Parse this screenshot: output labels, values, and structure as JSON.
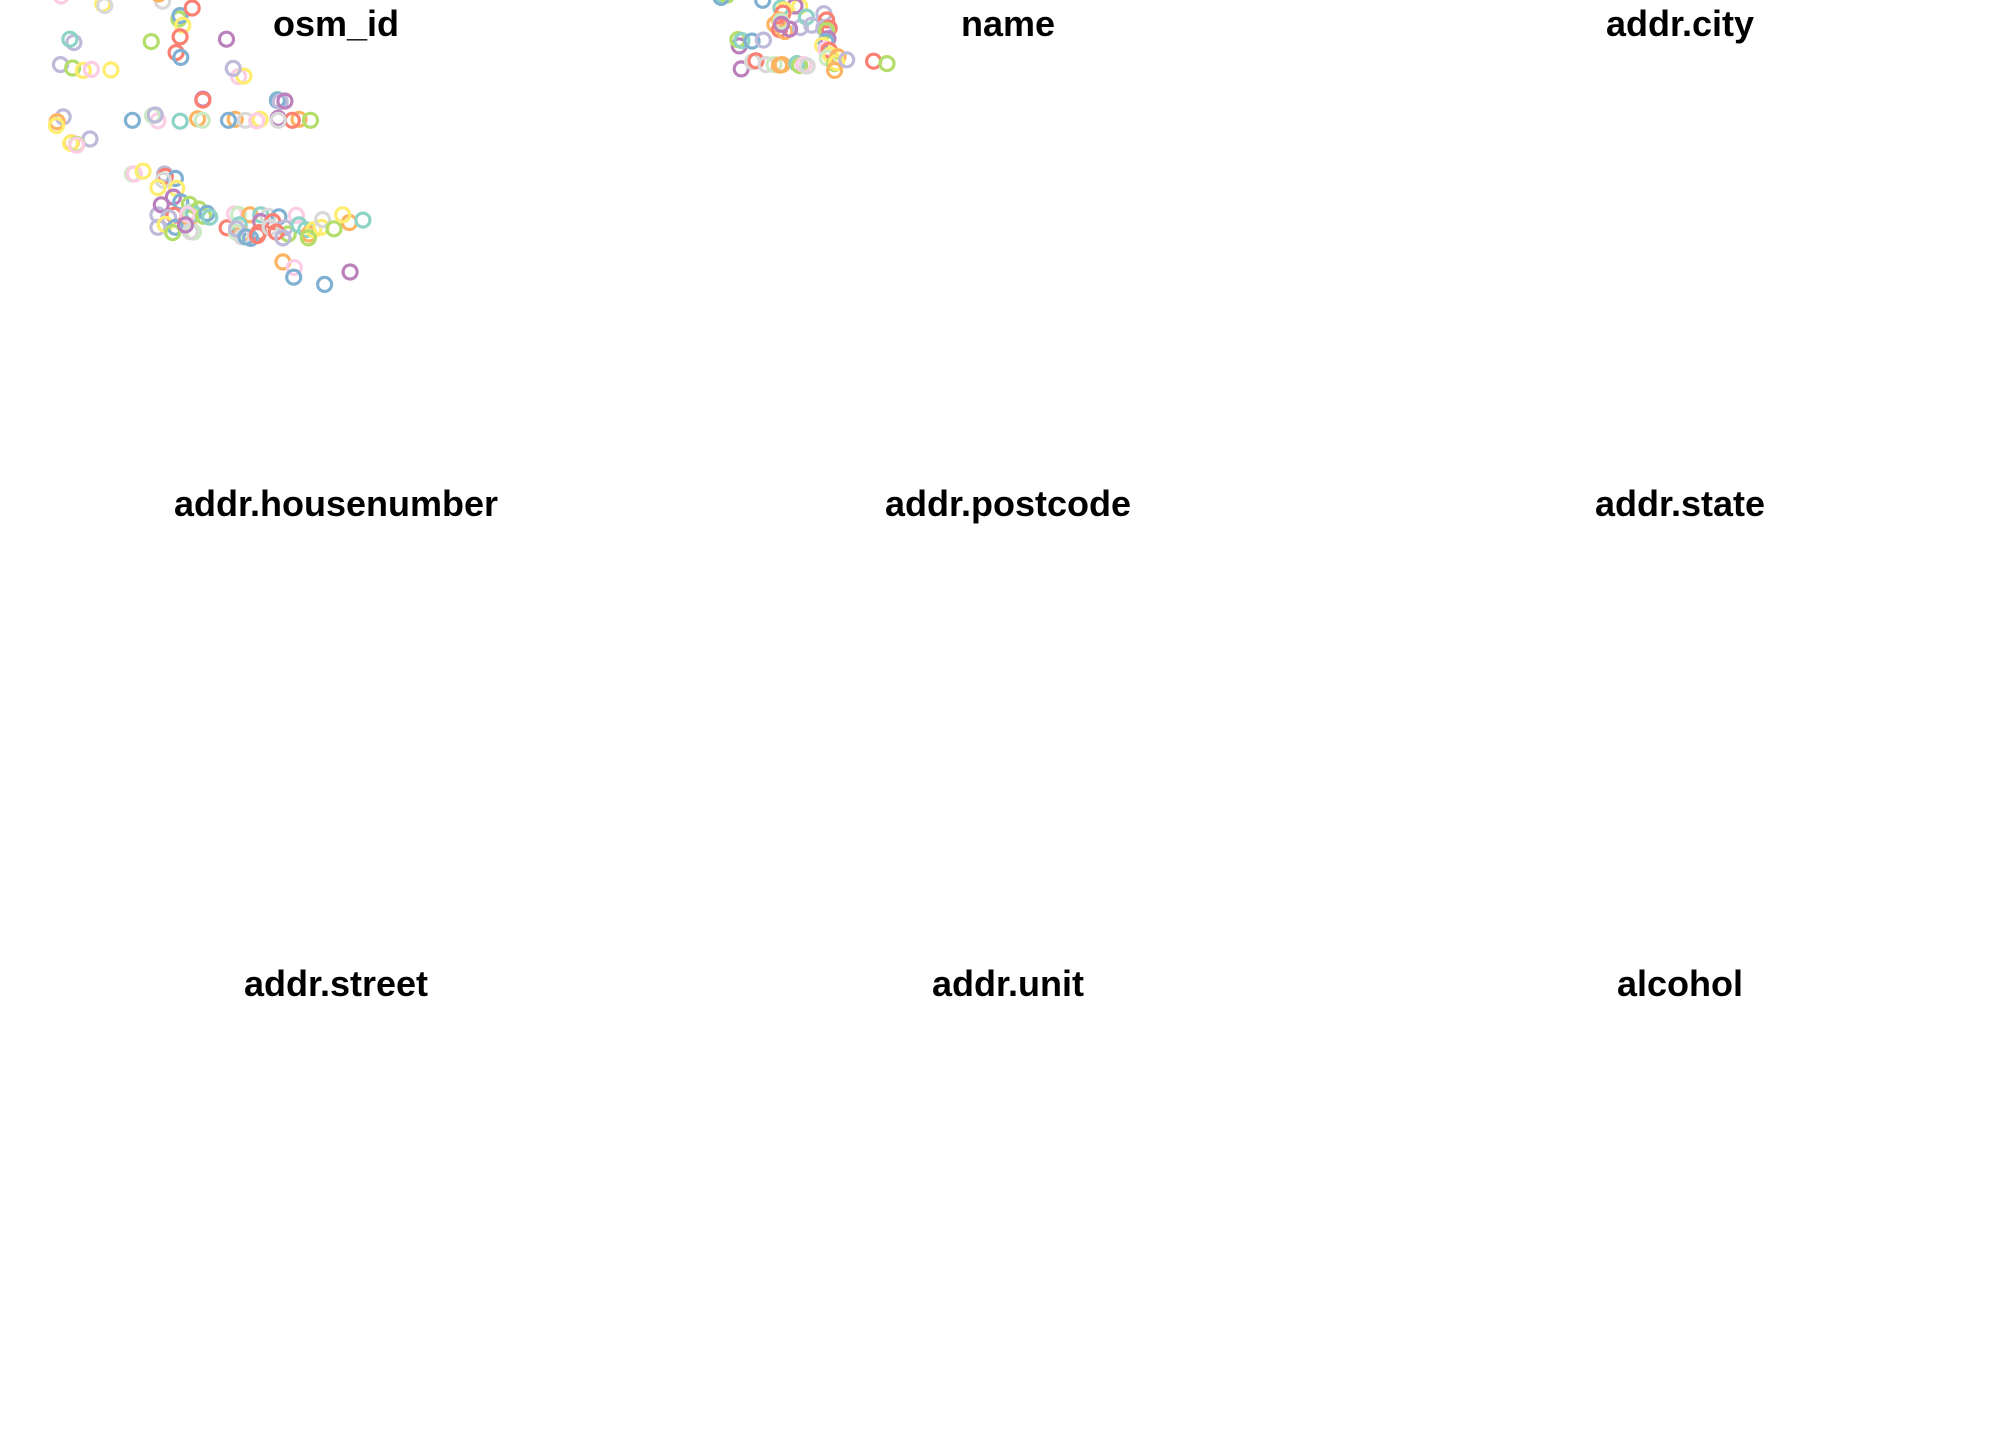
{
  "chart_data": [
    {
      "type": "scatter",
      "title": "osm_id",
      "points": [
        {
          "x": 0.09,
          "y": 0.52,
          "c": "#bebada"
        },
        {
          "x": 0.108,
          "y": 0.527,
          "c": "#b3de69"
        },
        {
          "x": 0.124,
          "y": 0.532,
          "c": "#ffed6f"
        },
        {
          "x": 0.11,
          "y": 0.474,
          "c": "#bebada"
        },
        {
          "x": 0.104,
          "y": 0.467,
          "c": "#8dd3c7"
        },
        {
          "x": 0.136,
          "y": 0.53,
          "c": "#fccde5"
        },
        {
          "x": 0.165,
          "y": 0.531,
          "c": "#ffed6f"
        },
        {
          "x": 0.091,
          "y": 0.348,
          "c": "#80b1d3"
        },
        {
          "x": 0.084,
          "y": 0.357,
          "c": "#bebada"
        },
        {
          "x": 0.091,
          "y": 0.377,
          "c": "#fccde5"
        },
        {
          "x": 0.153,
          "y": 0.394,
          "c": "#ffed6f"
        },
        {
          "x": 0.156,
          "y": 0.397,
          "c": "#d9d9d9"
        },
        {
          "x": 0.266,
          "y": 0.425,
          "c": "#b3de69"
        },
        {
          "x": 0.268,
          "y": 0.418,
          "c": "#80b1d3"
        },
        {
          "x": 0.242,
          "y": 0.388,
          "c": "#d9d9d9"
        },
        {
          "x": 0.236,
          "y": 0.373,
          "c": "#fdb462"
        },
        {
          "x": 0.286,
          "y": 0.402,
          "c": "#fb8072"
        },
        {
          "x": 0.272,
          "y": 0.438,
          "c": "#ffed6f"
        },
        {
          "x": 0.225,
          "y": 0.472,
          "c": "#b3de69"
        },
        {
          "x": 0.268,
          "y": 0.462,
          "c": "#fb8072"
        },
        {
          "x": 0.262,
          "y": 0.495,
          "c": "#fb8072"
        },
        {
          "x": 0.269,
          "y": 0.505,
          "c": "#80b1d3"
        },
        {
          "x": 0.337,
          "y": 0.467,
          "c": "#bc80bd"
        },
        {
          "x": 0.355,
          "y": 0.545,
          "c": "#fccde5"
        },
        {
          "x": 0.363,
          "y": 0.544,
          "c": "#ffed6f"
        },
        {
          "x": 0.347,
          "y": 0.528,
          "c": "#bebada"
        },
        {
          "x": 0.302,
          "y": 0.592,
          "c": "#bc80bd"
        },
        {
          "x": 0.302,
          "y": 0.594,
          "c": "#fb8072"
        },
        {
          "x": 0.413,
          "y": 0.593,
          "c": "#8dd3c7"
        },
        {
          "x": 0.413,
          "y": 0.595,
          "c": "#80b1d3"
        },
        {
          "x": 0.417,
          "y": 0.597,
          "c": "#bebada"
        },
        {
          "x": 0.424,
          "y": 0.596,
          "c": "#bc80bd"
        },
        {
          "x": 0.094,
          "y": 0.629,
          "c": "#bebada"
        },
        {
          "x": 0.085,
          "y": 0.639,
          "c": "#fdb462"
        },
        {
          "x": 0.084,
          "y": 0.647,
          "c": "#ffed6f"
        },
        {
          "x": 0.197,
          "y": 0.636,
          "c": "#80b1d3"
        },
        {
          "x": 0.235,
          "y": 0.637,
          "c": "#fccde5"
        },
        {
          "x": 0.268,
          "y": 0.638,
          "c": "#8dd3c7"
        },
        {
          "x": 0.227,
          "y": 0.626,
          "c": "#ccebc5"
        },
        {
          "x": 0.231,
          "y": 0.625,
          "c": "#bebada"
        },
        {
          "x": 0.294,
          "y": 0.633,
          "c": "#fdb462"
        },
        {
          "x": 0.301,
          "y": 0.636,
          "c": "#ccebc5"
        },
        {
          "x": 0.35,
          "y": 0.634,
          "c": "#fdb462"
        },
        {
          "x": 0.34,
          "y": 0.636,
          "c": "#80b1d3"
        },
        {
          "x": 0.365,
          "y": 0.636,
          "c": "#d9d9d9"
        },
        {
          "x": 0.387,
          "y": 0.634,
          "c": "#ffed6f"
        },
        {
          "x": 0.382,
          "y": 0.637,
          "c": "#fccde5"
        },
        {
          "x": 0.414,
          "y": 0.632,
          "c": "#bc80bd"
        },
        {
          "x": 0.445,
          "y": 0.634,
          "c": "#fdb462"
        },
        {
          "x": 0.462,
          "y": 0.636,
          "c": "#b3de69"
        },
        {
          "x": 0.435,
          "y": 0.636,
          "c": "#fb8072"
        },
        {
          "x": 0.414,
          "y": 0.636,
          "c": "#d9d9d9"
        },
        {
          "x": 0.134,
          "y": 0.675,
          "c": "#bebada"
        },
        {
          "x": 0.106,
          "y": 0.683,
          "c": "#fdb462"
        },
        {
          "x": 0.105,
          "y": 0.684,
          "c": "#ffed6f"
        },
        {
          "x": 0.114,
          "y": 0.686,
          "c": "#b3de69"
        },
        {
          "x": 0.114,
          "y": 0.688,
          "c": "#fccde5"
        },
        {
          "x": 0.197,
          "y": 0.748,
          "c": "#ccebc5"
        },
        {
          "x": 0.2,
          "y": 0.748,
          "c": "#fccde5"
        },
        {
          "x": 0.213,
          "y": 0.742,
          "c": "#ffed6f"
        },
        {
          "x": 0.245,
          "y": 0.748,
          "c": "#bebada"
        },
        {
          "x": 0.246,
          "y": 0.753,
          "c": "#fb8072"
        },
        {
          "x": 0.261,
          "y": 0.757,
          "c": "#80b1d3"
        },
        {
          "x": 0.243,
          "y": 0.761,
          "c": "#d9d9d9"
        },
        {
          "x": 0.235,
          "y": 0.776,
          "c": "#ffed6f"
        },
        {
          "x": 0.263,
          "y": 0.778,
          "c": "#ffed6f"
        },
        {
          "x": 0.258,
          "y": 0.796,
          "c": "#bc80bd"
        },
        {
          "x": 0.269,
          "y": 0.806,
          "c": "#80b1d3"
        },
        {
          "x": 0.235,
          "y": 0.833,
          "c": "#bebada"
        },
        {
          "x": 0.24,
          "y": 0.812,
          "c": "#bc80bd"
        },
        {
          "x": 0.282,
          "y": 0.84,
          "c": "#fdb462"
        },
        {
          "x": 0.282,
          "y": 0.811,
          "c": "#b3de69"
        },
        {
          "x": 0.259,
          "y": 0.834,
          "c": "#fb8072"
        },
        {
          "x": 0.284,
          "y": 0.827,
          "c": "#ccebc5"
        },
        {
          "x": 0.288,
          "y": 0.83,
          "c": "#8dd3c7"
        },
        {
          "x": 0.296,
          "y": 0.821,
          "c": "#b3de69"
        },
        {
          "x": 0.279,
          "y": 0.832,
          "c": "#fccde5"
        },
        {
          "x": 0.251,
          "y": 0.839,
          "c": "#bebada"
        },
        {
          "x": 0.235,
          "y": 0.859,
          "c": "#bebada"
        },
        {
          "x": 0.246,
          "y": 0.853,
          "c": "#ffed6f"
        },
        {
          "x": 0.261,
          "y": 0.859,
          "c": "#80b1d3"
        },
        {
          "x": 0.288,
          "y": 0.869,
          "c": "#ccebc5"
        },
        {
          "x": 0.257,
          "y": 0.87,
          "c": "#b3de69"
        },
        {
          "x": 0.283,
          "y": 0.868,
          "c": "#d9d9d9"
        },
        {
          "x": 0.276,
          "y": 0.854,
          "c": "#bc80bd"
        },
        {
          "x": 0.303,
          "y": 0.836,
          "c": "#b3de69"
        },
        {
          "x": 0.308,
          "y": 0.83,
          "c": "#80b1d3"
        },
        {
          "x": 0.312,
          "y": 0.838,
          "c": "#8dd3c7"
        },
        {
          "x": 0.338,
          "y": 0.86,
          "c": "#fb8072"
        },
        {
          "x": 0.349,
          "y": 0.831,
          "c": "#fccde5"
        },
        {
          "x": 0.355,
          "y": 0.832,
          "c": "#ccebc5"
        },
        {
          "x": 0.372,
          "y": 0.833,
          "c": "#fdb462"
        },
        {
          "x": 0.356,
          "y": 0.854,
          "c": "#8dd3c7"
        },
        {
          "x": 0.388,
          "y": 0.833,
          "c": "#8dd3c7"
        },
        {
          "x": 0.399,
          "y": 0.836,
          "c": "#d9d9d9"
        },
        {
          "x": 0.388,
          "y": 0.847,
          "c": "#bc80bd"
        },
        {
          "x": 0.385,
          "y": 0.87,
          "c": "#fb8072"
        },
        {
          "x": 0.36,
          "y": 0.874,
          "c": "#fdb462"
        },
        {
          "x": 0.352,
          "y": 0.87,
          "c": "#ccebc5"
        },
        {
          "x": 0.373,
          "y": 0.882,
          "c": "#80b1d3"
        },
        {
          "x": 0.36,
          "y": 0.879,
          "c": "#d9d9d9"
        },
        {
          "x": 0.352,
          "y": 0.862,
          "c": "#bebada"
        },
        {
          "x": 0.366,
          "y": 0.879,
          "c": "#80b1d3"
        },
        {
          "x": 0.383,
          "y": 0.876,
          "c": "#fb8072"
        },
        {
          "x": 0.415,
          "y": 0.837,
          "c": "#80b1d3"
        },
        {
          "x": 0.406,
          "y": 0.847,
          "c": "#fb8072"
        },
        {
          "x": 0.424,
          "y": 0.86,
          "c": "#bebada"
        },
        {
          "x": 0.429,
          "y": 0.873,
          "c": "#b3de69"
        },
        {
          "x": 0.441,
          "y": 0.834,
          "c": "#fccde5"
        },
        {
          "x": 0.445,
          "y": 0.854,
          "c": "#8dd3c7"
        },
        {
          "x": 0.402,
          "y": 0.859,
          "c": "#d9d9d9"
        },
        {
          "x": 0.411,
          "y": 0.869,
          "c": "#fb8072"
        },
        {
          "x": 0.421,
          "y": 0.881,
          "c": "#bebada"
        },
        {
          "x": 0.455,
          "y": 0.864,
          "c": "#8dd3c7"
        },
        {
          "x": 0.46,
          "y": 0.873,
          "c": "#fdb462"
        },
        {
          "x": 0.467,
          "y": 0.864,
          "c": "#ffed6f"
        },
        {
          "x": 0.459,
          "y": 0.881,
          "c": "#b3de69"
        },
        {
          "x": 0.478,
          "y": 0.859,
          "c": "#ffed6f"
        },
        {
          "x": 0.48,
          "y": 0.843,
          "c": "#d9d9d9"
        },
        {
          "x": 0.497,
          "y": 0.862,
          "c": "#b3de69"
        },
        {
          "x": 0.52,
          "y": 0.849,
          "c": "#fdb462"
        },
        {
          "x": 0.54,
          "y": 0.844,
          "c": "#8dd3c7"
        },
        {
          "x": 0.51,
          "y": 0.833,
          "c": "#ffed6f"
        },
        {
          "x": 0.421,
          "y": 0.931,
          "c": "#fdb462"
        },
        {
          "x": 0.438,
          "y": 0.943,
          "c": "#fccde5"
        },
        {
          "x": 0.437,
          "y": 0.963,
          "c": "#80b1d3"
        },
        {
          "x": 0.521,
          "y": 0.952,
          "c": "#bc80bd"
        },
        {
          "x": 0.483,
          "y": 0.978,
          "c": "#80b1d3"
        }
      ]
    },
    {
      "type": "scatter",
      "title": "name",
      "points": [
        {
          "x": 0.103,
          "y": 0.529,
          "c": "#bc80bd"
        },
        {
          "x": 0.1,
          "y": 0.481,
          "c": "#bc80bd"
        },
        {
          "x": 0.098,
          "y": 0.468,
          "c": "#b3de69"
        },
        {
          "x": 0.104,
          "y": 0.47,
          "c": "#8dd3c7"
        },
        {
          "x": 0.119,
          "y": 0.471,
          "c": "#80b1d3"
        },
        {
          "x": 0.136,
          "y": 0.469,
          "c": "#bebada"
        },
        {
          "x": 0.153,
          "y": 0.436,
          "c": "#fdb462"
        },
        {
          "x": 0.16,
          "y": 0.447,
          "c": "#fb8072"
        },
        {
          "x": 0.168,
          "y": 0.451,
          "c": "#fdb462"
        },
        {
          "x": 0.19,
          "y": 0.399,
          "c": "#ffed6f"
        },
        {
          "x": 0.183,
          "y": 0.398,
          "c": "#bc80bd"
        },
        {
          "x": 0.205,
          "y": 0.367,
          "c": "#b3de69"
        },
        {
          "x": 0.072,
          "y": 0.356,
          "c": "#fccde5"
        },
        {
          "x": 0.076,
          "y": 0.362,
          "c": "#80b1d3"
        },
        {
          "x": 0.078,
          "y": 0.37,
          "c": "#ffed6f"
        },
        {
          "x": 0.075,
          "y": 0.375,
          "c": "#8dd3c7"
        },
        {
          "x": 0.082,
          "y": 0.37,
          "c": "#ffed6f"
        },
        {
          "x": 0.082,
          "y": 0.375,
          "c": "#b3de69"
        },
        {
          "x": 0.073,
          "y": 0.38,
          "c": "#80b1d3"
        },
        {
          "x": 0.135,
          "y": 0.386,
          "c": "#80b1d3"
        },
        {
          "x": 0.162,
          "y": 0.402,
          "c": "#8dd3c7"
        },
        {
          "x": 0.167,
          "y": 0.406,
          "c": "#ffed6f"
        },
        {
          "x": 0.191,
          "y": 0.443,
          "c": "#bebada"
        },
        {
          "x": 0.165,
          "y": 0.413,
          "c": "#fb8072"
        },
        {
          "x": 0.175,
          "y": 0.446,
          "c": "#bc80bd"
        },
        {
          "x": 0.16,
          "y": 0.427,
          "c": "#fdb462"
        },
        {
          "x": 0.162,
          "y": 0.43,
          "c": "#ccebc5"
        },
        {
          "x": 0.163,
          "y": 0.436,
          "c": "#bc80bd"
        },
        {
          "x": 0.2,
          "y": 0.421,
          "c": "#8dd3c7"
        },
        {
          "x": 0.208,
          "y": 0.438,
          "c": "#bebada"
        },
        {
          "x": 0.12,
          "y": 0.514,
          "c": "#d9d9d9"
        },
        {
          "x": 0.125,
          "y": 0.512,
          "c": "#fb8072"
        },
        {
          "x": 0.14,
          "y": 0.52,
          "c": "#d9d9d9"
        },
        {
          "x": 0.152,
          "y": 0.52,
          "c": "#ccebc5"
        },
        {
          "x": 0.16,
          "y": 0.521,
          "c": "#fdb462"
        },
        {
          "x": 0.164,
          "y": 0.52,
          "c": "#fdb462"
        },
        {
          "x": 0.186,
          "y": 0.518,
          "c": "#8dd3c7"
        },
        {
          "x": 0.19,
          "y": 0.522,
          "c": "#b3de69"
        },
        {
          "x": 0.196,
          "y": 0.52,
          "c": "#fccde5"
        },
        {
          "x": 0.201,
          "y": 0.523,
          "c": "#d9d9d9"
        },
        {
          "x": 0.226,
          "y": 0.414,
          "c": "#bebada"
        },
        {
          "x": 0.23,
          "y": 0.427,
          "c": "#fb8072"
        },
        {
          "x": 0.226,
          "y": 0.444,
          "c": "#bebada"
        },
        {
          "x": 0.234,
          "y": 0.444,
          "c": "#fb8072"
        },
        {
          "x": 0.23,
          "y": 0.449,
          "c": "#b3de69"
        },
        {
          "x": 0.232,
          "y": 0.466,
          "c": "#bc80bd"
        },
        {
          "x": 0.229,
          "y": 0.472,
          "c": "#80b1d3"
        },
        {
          "x": 0.224,
          "y": 0.48,
          "c": "#ffed6f"
        },
        {
          "x": 0.229,
          "y": 0.488,
          "c": "#fccde5"
        },
        {
          "x": 0.234,
          "y": 0.49,
          "c": "#fb8072"
        },
        {
          "x": 0.236,
          "y": 0.5,
          "c": "#ffed6f"
        },
        {
          "x": 0.231,
          "y": 0.506,
          "c": "#ccebc5"
        },
        {
          "x": 0.242,
          "y": 0.518,
          "c": "#b3de69"
        },
        {
          "x": 0.247,
          "y": 0.504,
          "c": "#fdb462"
        },
        {
          "x": 0.245,
          "y": 0.516,
          "c": "#ffed6f"
        },
        {
          "x": 0.242,
          "y": 0.532,
          "c": "#fdb462"
        },
        {
          "x": 0.26,
          "y": 0.51,
          "c": "#bebada"
        },
        {
          "x": 0.3,
          "y": 0.513,
          "c": "#fb8072"
        },
        {
          "x": 0.32,
          "y": 0.518,
          "c": "#b3de69"
        }
      ]
    }
  ],
  "panels": [
    {
      "title": "osm_id"
    },
    {
      "title": "name"
    },
    {
      "title": "addr.city"
    },
    {
      "title": "addr.housenumber"
    },
    {
      "title": "addr.postcode"
    },
    {
      "title": "addr.state"
    },
    {
      "title": "addr.street"
    },
    {
      "title": "addr.unit"
    },
    {
      "title": "alcohol"
    }
  ]
}
